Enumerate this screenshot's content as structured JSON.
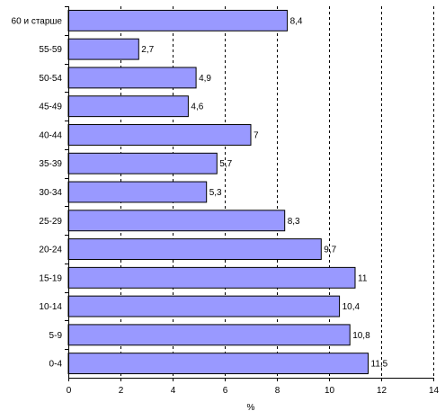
{
  "chart_data": {
    "type": "bar",
    "orientation": "horizontal",
    "categories": [
      "60 и старше",
      "55-59",
      "50-54",
      "45-49",
      "40-44",
      "35-39",
      "30-34",
      "25-29",
      "20-24",
      "15-19",
      "10-14",
      "5-9",
      "0-4"
    ],
    "values": [
      8.4,
      2.7,
      4.9,
      4.6,
      7,
      5.7,
      5.3,
      8.3,
      9.7,
      11,
      10.4,
      10.8,
      11.5
    ],
    "value_labels": [
      "8,4",
      "2,7",
      "4,9",
      "4,6",
      "7",
      "5,7",
      "5,3",
      "8,3",
      "9,7",
      "11",
      "10,4",
      "10,8",
      "11,5"
    ],
    "xlabel": "%",
    "xlim": [
      0,
      14
    ],
    "xticks": [
      0,
      2,
      4,
      6,
      8,
      10,
      12,
      14
    ],
    "grid": "vertical dashed",
    "bar_color": "#9999ff"
  }
}
